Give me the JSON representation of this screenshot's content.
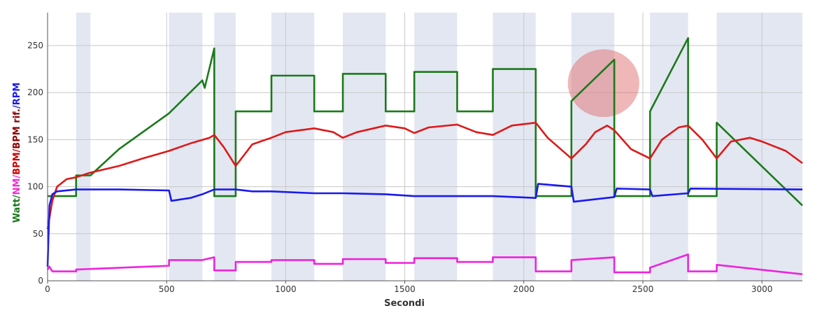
{
  "chart_data": {
    "type": "line",
    "xlabel": "Secondi",
    "ylabel_parts": [
      {
        "text": "Watt",
        "color": "#1a7a1a"
      },
      {
        "text": "/",
        "color": "#1a7a1a"
      },
      {
        "text": "NM",
        "color": "#ff22dd"
      },
      {
        "text": "/",
        "color": "#ff22dd"
      },
      {
        "text": "BPM",
        "color": "#cc0000"
      },
      {
        "text": "/",
        "color": "#cc0000"
      },
      {
        "text": "BPM rif.",
        "color": "#8b0000"
      },
      {
        "text": "/",
        "color": "#1a1aee"
      },
      {
        "text": "RPM",
        "color": "#1a1aee"
      }
    ],
    "xlim": [
      0,
      3170
    ],
    "ylim": [
      0,
      285
    ],
    "xticks": [
      0,
      500,
      1000,
      1500,
      2000,
      2500,
      3000
    ],
    "yticks": [
      0,
      50,
      100,
      150,
      200,
      250
    ],
    "grid": true,
    "shaded_intervals": [
      [
        120,
        180
      ],
      [
        510,
        650
      ],
      [
        700,
        790
      ],
      [
        940,
        1120
      ],
      [
        1240,
        1420
      ],
      [
        1540,
        1720
      ],
      [
        1870,
        2050
      ],
      [
        2200,
        2380
      ],
      [
        2530,
        2690
      ],
      [
        2810,
        3170
      ]
    ],
    "highlight": {
      "x": 2335,
      "y": 210,
      "rx": 150,
      "ry": 36,
      "color": "#e07070"
    },
    "series": [
      {
        "color": "#1a7a1a",
        "points": [
          [
            0,
            90
          ],
          [
            40,
            90
          ],
          [
            120,
            90
          ],
          [
            120,
            112
          ],
          [
            180,
            112
          ],
          [
            180,
            112
          ],
          [
            300,
            140
          ],
          [
            510,
            178
          ],
          [
            650,
            213
          ],
          [
            660,
            205
          ],
          [
            700,
            247
          ],
          [
            700,
            90
          ],
          [
            790,
            90
          ],
          [
            790,
            180
          ],
          [
            940,
            180
          ],
          [
            940,
            218
          ],
          [
            1120,
            218
          ],
          [
            1120,
            180
          ],
          [
            1240,
            180
          ],
          [
            1240,
            220
          ],
          [
            1420,
            220
          ],
          [
            1420,
            180
          ],
          [
            1540,
            180
          ],
          [
            1540,
            222
          ],
          [
            1720,
            222
          ],
          [
            1720,
            180
          ],
          [
            1870,
            180
          ],
          [
            1870,
            225
          ],
          [
            2050,
            225
          ],
          [
            2050,
            90
          ],
          [
            2200,
            90
          ],
          [
            2200,
            191
          ],
          [
            2380,
            235
          ],
          [
            2380,
            90
          ],
          [
            2530,
            90
          ],
          [
            2530,
            180
          ],
          [
            2690,
            258
          ],
          [
            2690,
            90
          ],
          [
            2810,
            90
          ],
          [
            2810,
            168
          ],
          [
            3170,
            80
          ]
        ]
      },
      {
        "color": "#dd1a1a",
        "points": [
          [
            0,
            55
          ],
          [
            20,
            85
          ],
          [
            40,
            100
          ],
          [
            80,
            108
          ],
          [
            120,
            110
          ],
          [
            180,
            115
          ],
          [
            300,
            122
          ],
          [
            400,
            130
          ],
          [
            510,
            138
          ],
          [
            600,
            146
          ],
          [
            680,
            152
          ],
          [
            700,
            155
          ],
          [
            740,
            142
          ],
          [
            790,
            122
          ],
          [
            860,
            145
          ],
          [
            940,
            152
          ],
          [
            1000,
            158
          ],
          [
            1120,
            162
          ],
          [
            1200,
            158
          ],
          [
            1240,
            152
          ],
          [
            1300,
            158
          ],
          [
            1420,
            165
          ],
          [
            1500,
            162
          ],
          [
            1540,
            157
          ],
          [
            1600,
            163
          ],
          [
            1720,
            166
          ],
          [
            1800,
            158
          ],
          [
            1870,
            155
          ],
          [
            1950,
            165
          ],
          [
            2050,
            168
          ],
          [
            2100,
            152
          ],
          [
            2200,
            130
          ],
          [
            2260,
            145
          ],
          [
            2300,
            158
          ],
          [
            2350,
            165
          ],
          [
            2380,
            160
          ],
          [
            2450,
            140
          ],
          [
            2530,
            130
          ],
          [
            2580,
            150
          ],
          [
            2650,
            163
          ],
          [
            2690,
            165
          ],
          [
            2750,
            150
          ],
          [
            2810,
            130
          ],
          [
            2870,
            148
          ],
          [
            2950,
            152
          ],
          [
            3000,
            148
          ],
          [
            3100,
            138
          ],
          [
            3170,
            125
          ]
        ]
      },
      {
        "color": "#1a1aee",
        "points": [
          [
            0,
            15
          ],
          [
            8,
            80
          ],
          [
            20,
            92
          ],
          [
            40,
            95
          ],
          [
            120,
            97
          ],
          [
            300,
            97
          ],
          [
            510,
            96
          ],
          [
            520,
            85
          ],
          [
            600,
            88
          ],
          [
            650,
            92
          ],
          [
            700,
            97
          ],
          [
            790,
            97
          ],
          [
            860,
            95
          ],
          [
            940,
            95
          ],
          [
            1120,
            93
          ],
          [
            1240,
            93
          ],
          [
            1420,
            92
          ],
          [
            1540,
            90
          ],
          [
            1720,
            90
          ],
          [
            1870,
            90
          ],
          [
            2050,
            88
          ],
          [
            2060,
            103
          ],
          [
            2200,
            100
          ],
          [
            2210,
            84
          ],
          [
            2380,
            89
          ],
          [
            2390,
            98
          ],
          [
            2530,
            97
          ],
          [
            2540,
            90
          ],
          [
            2690,
            93
          ],
          [
            2700,
            98
          ],
          [
            3170,
            97
          ]
        ]
      },
      {
        "color": "#ee22dd",
        "points": [
          [
            0,
            12
          ],
          [
            8,
            15
          ],
          [
            20,
            10
          ],
          [
            120,
            10
          ],
          [
            120,
            12
          ],
          [
            510,
            16
          ],
          [
            510,
            22
          ],
          [
            650,
            22
          ],
          [
            700,
            25
          ],
          [
            700,
            11
          ],
          [
            790,
            11
          ],
          [
            790,
            20
          ],
          [
            940,
            20
          ],
          [
            940,
            22
          ],
          [
            1120,
            22
          ],
          [
            1120,
            18
          ],
          [
            1240,
            18
          ],
          [
            1240,
            23
          ],
          [
            1420,
            23
          ],
          [
            1420,
            19
          ],
          [
            1540,
            19
          ],
          [
            1540,
            24
          ],
          [
            1720,
            24
          ],
          [
            1720,
            20
          ],
          [
            1870,
            20
          ],
          [
            1870,
            25
          ],
          [
            2050,
            25
          ],
          [
            2050,
            10
          ],
          [
            2200,
            10
          ],
          [
            2200,
            22
          ],
          [
            2380,
            25
          ],
          [
            2380,
            9
          ],
          [
            2530,
            9
          ],
          [
            2530,
            14
          ],
          [
            2690,
            28
          ],
          [
            2690,
            10
          ],
          [
            2810,
            10
          ],
          [
            2810,
            17
          ],
          [
            3170,
            7
          ]
        ]
      }
    ]
  }
}
